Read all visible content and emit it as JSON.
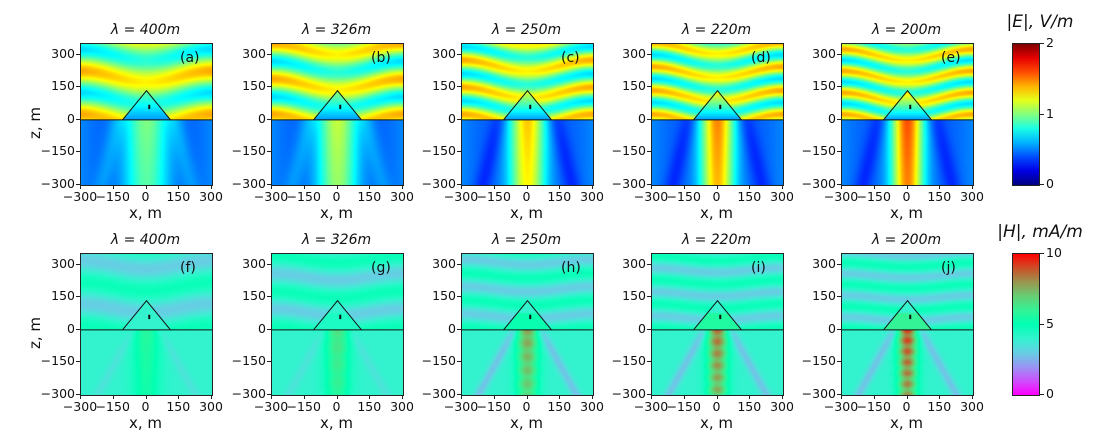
{
  "chart_data": {
    "type": "heatmap",
    "xlabel": "x, m",
    "ylabel": "z, m",
    "xlim": [
      -300,
      300
    ],
    "ylim": [
      -300,
      350
    ],
    "xticks": [
      "−300",
      "−150",
      "0",
      "150",
      "300"
    ],
    "yticks": [
      "300",
      "150",
      "0",
      "−150",
      "−300"
    ],
    "rows": [
      {
        "quantity": "|E|, V/m",
        "colormap": "jet",
        "vmin": 0,
        "vmax": 2,
        "cbar_ticks": [
          "2",
          "1",
          "0"
        ],
        "panels": [
          {
            "title": "λ = 400m",
            "lambda": 400,
            "label": "(a)"
          },
          {
            "title": "λ = 326m",
            "lambda": 326,
            "label": "(b)"
          },
          {
            "title": "λ = 250m",
            "lambda": 250,
            "label": "(c)"
          },
          {
            "title": "λ = 220m",
            "lambda": 220,
            "label": "(d)"
          },
          {
            "title": "λ = 200m",
            "lambda": 200,
            "label": "(e)"
          }
        ]
      },
      {
        "quantity": "|H|, mA/m",
        "colormap": "rainbow",
        "vmin": 0,
        "vmax": 10,
        "cbar_ticks": [
          "10",
          "5",
          "0"
        ],
        "panels": [
          {
            "title": "λ = 400m",
            "lambda": 400,
            "label": "(f)"
          },
          {
            "title": "λ = 326m",
            "lambda": 326,
            "label": "(g)"
          },
          {
            "title": "λ = 250m",
            "lambda": 250,
            "label": "(h)"
          },
          {
            "title": "λ = 220m",
            "lambda": 220,
            "label": "(i)"
          },
          {
            "title": "λ = 200m",
            "lambda": 200,
            "label": "(j)"
          }
        ]
      }
    ]
  }
}
